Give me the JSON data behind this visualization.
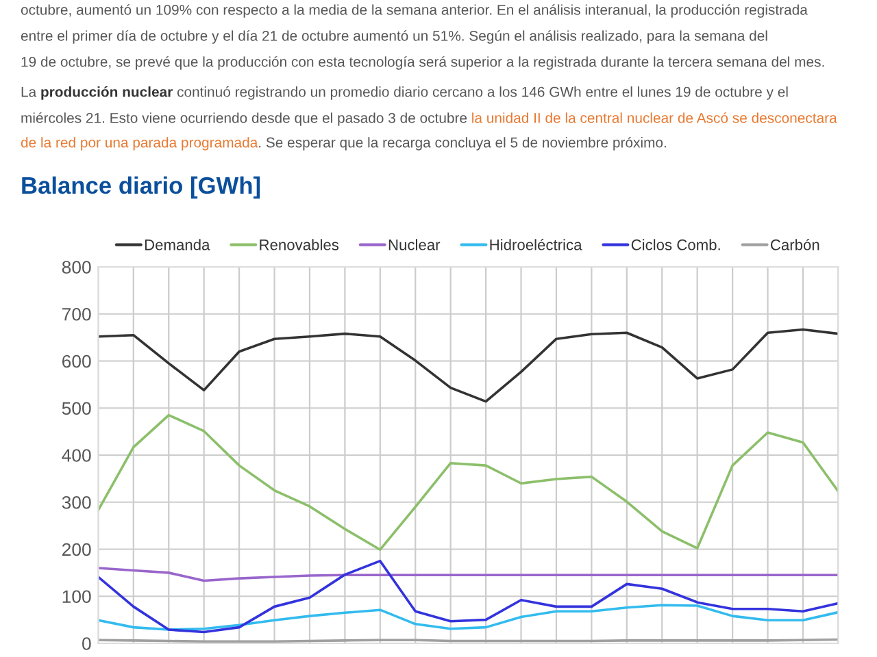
{
  "chart_data": {
    "type": "line",
    "title": "Balance diario [GWh]",
    "annotations": [
      "octubre, aumentó un 109% con respecto a la media de la semana anterior. En el análisis interanual, la producción registrada",
      "entre el primer día de octubre y el día 21 de octubre aumentó un 51%. Según el análisis realizado, para la semana del",
      "19 de octubre, se prevé que la producción con esta tecnología será superior a la registrada durante la tercera semana del mes.",
      "La ",
      "producción nuclear",
      " continuó registrando un promedio diario cercano a los 146 GWh entre el lunes 19 de octubre y el",
      "miércoles 21. Esto viene ocurriendo desde que el pasado 3 de octubre ",
      "la unidad II de la central nuclear de Ascó se desconectara",
      "de la red por una parada programada",
      ". Se esperar que la recarga concluya el 5 de noviembre próximo."
    ],
    "categories": [
      null,
      null,
      null,
      null,
      null,
      null,
      null,
      null,
      null,
      null,
      null,
      null,
      null,
      null,
      null,
      null,
      null,
      null,
      null,
      null,
      null,
      null
    ],
    "series": [
      {
        "name": "Demanda",
        "color": "#333333",
        "values": [
          652,
          655,
          595,
          538,
          620,
          647,
          652,
          658,
          652,
          601,
          543,
          514,
          577,
          647,
          657,
          660,
          629,
          563,
          582,
          660,
          667,
          658
        ]
      },
      {
        "name": "Renovables",
        "color": "#8cbf6a",
        "values": [
          283,
          417,
          485,
          451,
          378,
          325,
          291,
          243,
          199,
          290,
          383,
          378,
          340,
          349,
          354,
          301,
          238,
          202,
          378,
          448,
          427,
          323
        ]
      },
      {
        "name": "Nuclear",
        "color": "#9966cc",
        "values": [
          160,
          155,
          150,
          133,
          138,
          141,
          144,
          145,
          145,
          145,
          145,
          145,
          145,
          145,
          145,
          145,
          145,
          145,
          145,
          145,
          145,
          145
        ]
      },
      {
        "name": "Hidroeléctrica",
        "color": "#33bbee",
        "values": [
          49,
          34,
          29,
          31,
          39,
          49,
          58,
          65,
          71,
          41,
          31,
          34,
          56,
          68,
          68,
          76,
          81,
          80,
          58,
          49,
          49,
          66
        ]
      },
      {
        "name": "Ciclos Comb.",
        "color": "#3333dd",
        "values": [
          141,
          78,
          29,
          24,
          34,
          78,
          97,
          146,
          175,
          68,
          47,
          50,
          92,
          78,
          78,
          126,
          116,
          87,
          73,
          73,
          68,
          85
        ]
      },
      {
        "name": "Carbón",
        "color": "#a0a0a0",
        "values": [
          7,
          6,
          5,
          4,
          4,
          4,
          5,
          6,
          7,
          7,
          5,
          5,
          5,
          5,
          5,
          6,
          6,
          6,
          6,
          6,
          7,
          8
        ]
      }
    ],
    "ylim": [
      0,
      800
    ],
    "yticks": [
      0,
      100,
      200,
      300,
      400,
      500,
      600,
      700,
      800
    ],
    "grid": true,
    "legend": "top",
    "line_style": "solid",
    "marker": "none"
  }
}
